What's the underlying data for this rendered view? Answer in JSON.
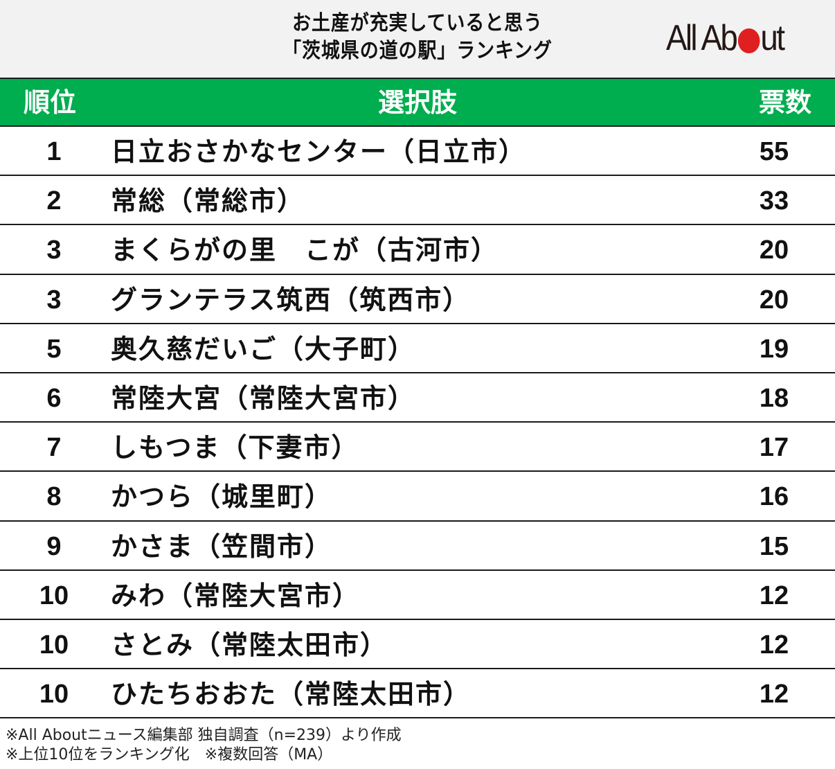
{
  "title": {
    "line1": "お土産が充実していると思う",
    "line2": "「茨城県の道の駅」ランキング"
  },
  "logo": {
    "before": "All Ab",
    "after": "ut",
    "dot_color": "#e02020"
  },
  "colors": {
    "header_bg": "#00ad4f",
    "title_bg": "#f2f2f2"
  },
  "table": {
    "headers": {
      "rank": "順位",
      "choice": "選択肢",
      "votes": "票数"
    },
    "rows": [
      {
        "rank": "1",
        "name": "日立おさかなセンター（日立市）",
        "votes": "55"
      },
      {
        "rank": "2",
        "name": "常総（常総市）",
        "votes": "33"
      },
      {
        "rank": "3",
        "name": "まくらがの里　こが（古河市）",
        "votes": "20"
      },
      {
        "rank": "3",
        "name": "グランテラス筑西（筑西市）",
        "votes": "20"
      },
      {
        "rank": "5",
        "name": "奥久慈だいご（大子町）",
        "votes": "19"
      },
      {
        "rank": "6",
        "name": "常陸大宮（常陸大宮市）",
        "votes": "18"
      },
      {
        "rank": "7",
        "name": "しもつま（下妻市）",
        "votes": "17"
      },
      {
        "rank": "8",
        "name": "かつら（城里町）",
        "votes": "16"
      },
      {
        "rank": "9",
        "name": "かさま（笠間市）",
        "votes": "15"
      },
      {
        "rank": "10",
        "name": "みわ（常陸大宮市）",
        "votes": "12"
      },
      {
        "rank": "10",
        "name": "さとみ（常陸太田市）",
        "votes": "12"
      },
      {
        "rank": "10",
        "name": "ひたちおおた（常陸太田市）",
        "votes": "12"
      }
    ]
  },
  "notes": {
    "line1": "※All Aboutニュース編集部 独自調査（n=239）より作成",
    "line2": "※上位10位をランキング化　※複数回答（MA）"
  },
  "chart_data": {
    "type": "table",
    "title": "お土産が充実していると思う「茨城県の道の駅」ランキング",
    "columns": [
      "順位",
      "選択肢",
      "票数"
    ],
    "categories": [
      "日立おさかなセンター（日立市）",
      "常総（常総市）",
      "まくらがの里　こが（古河市）",
      "グランテラス筑西（筑西市）",
      "奥久慈だいご（大子町）",
      "常陸大宮（常陸大宮市）",
      "しもつま（下妻市）",
      "かつら（城里町）",
      "かさま（笠間市）",
      "みわ（常陸大宮市）",
      "さとみ（常陸太田市）",
      "ひたちおおた（常陸太田市）"
    ],
    "ranks": [
      1,
      2,
      3,
      3,
      5,
      6,
      7,
      8,
      9,
      10,
      10,
      10
    ],
    "values": [
      55,
      33,
      20,
      20,
      19,
      18,
      17,
      16,
      15,
      12,
      12,
      12
    ],
    "notes": [
      "※All Aboutニュース編集部 独自調査（n=239）より作成",
      "※上位10位をランキング化　※複数回答（MA）"
    ]
  }
}
